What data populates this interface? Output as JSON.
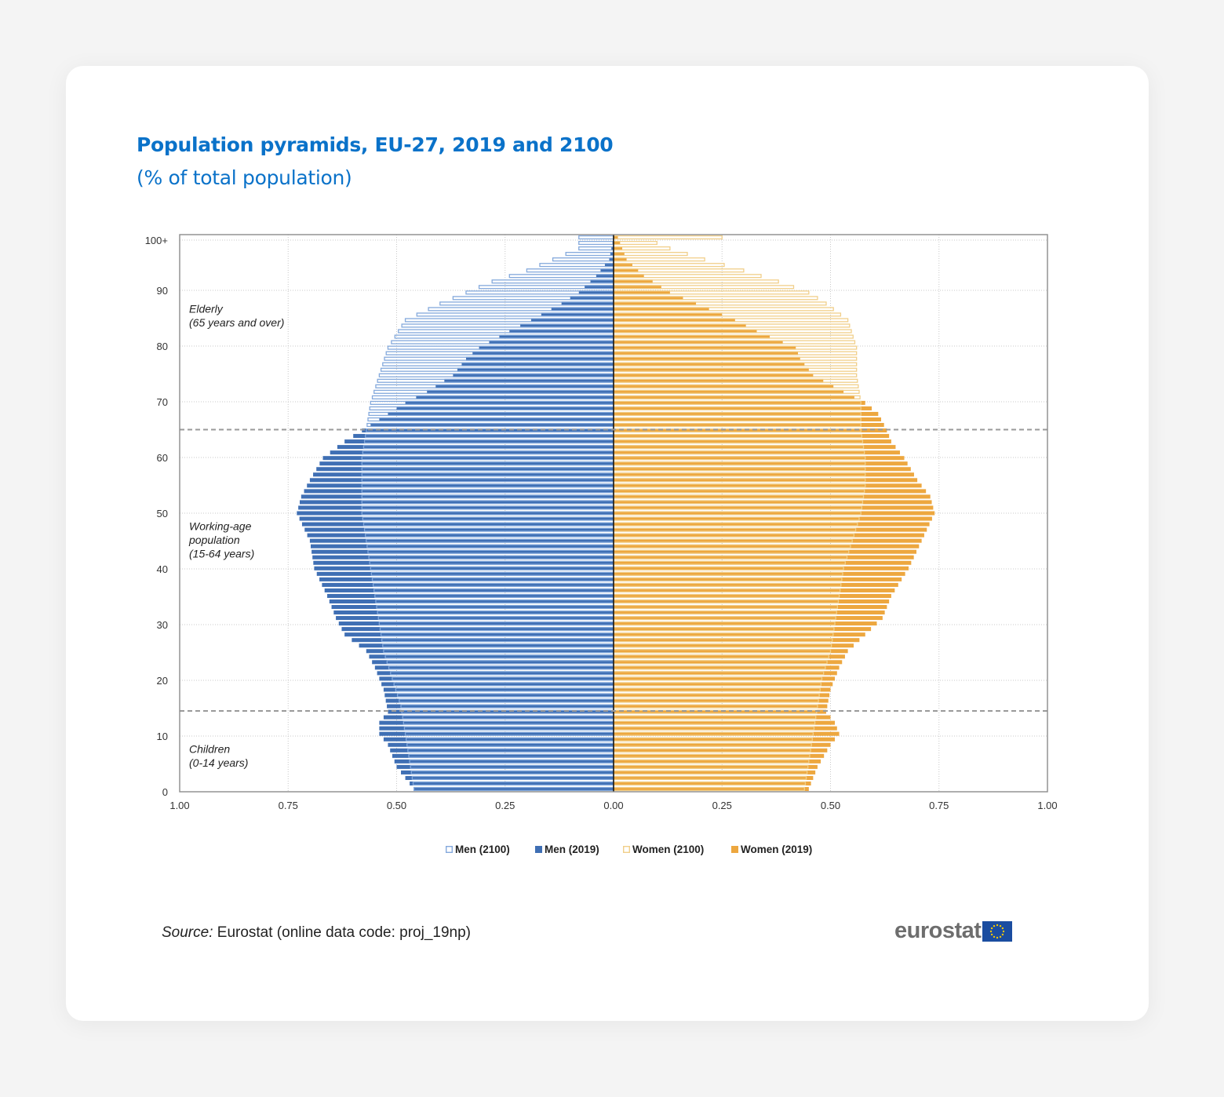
{
  "title": "Population pyramids, EU-27, 2019 and 2100",
  "subtitle": "(% of total population)",
  "source": {
    "label": "Source:",
    "text": "Eurostat (online data code: proj_19np)"
  },
  "logo": {
    "text": "eurostat",
    "flag_icon": "eu-flag-icon"
  },
  "colors": {
    "men_2019": "#3f6fb4",
    "men_2100": "#84a9dc",
    "women_2019": "#eda73f",
    "women_2100": "#f1cf8a",
    "title": "#0a72c9"
  },
  "annotations": [
    {
      "lines": [
        "Elderly",
        "(65 years and over)"
      ],
      "age": 86
    },
    {
      "lines": [
        "Working-age",
        "population",
        "(15-64 years)"
      ],
      "age": 47
    },
    {
      "lines": [
        "Children",
        "(0-14 years)"
      ],
      "age": 7
    }
  ],
  "chart_data": {
    "type": "bar",
    "orientation": "horizontal-pyramid",
    "y_ticks": [
      {
        "age": 100,
        "label": "100+"
      },
      {
        "age": 90,
        "label": "90"
      },
      {
        "age": 80,
        "label": "80"
      },
      {
        "age": 70,
        "label": "70"
      },
      {
        "age": 60,
        "label": "60"
      },
      {
        "age": 50,
        "label": "50"
      },
      {
        "age": 40,
        "label": "40"
      },
      {
        "age": 30,
        "label": "30"
      },
      {
        "age": 20,
        "label": "20"
      },
      {
        "age": 10,
        "label": "10"
      },
      {
        "age": 0,
        "label": "0"
      }
    ],
    "x_ticks": [
      {
        "value": -1.0,
        "label": "1.00"
      },
      {
        "value": -0.75,
        "label": "0.75"
      },
      {
        "value": -0.5,
        "label": "0.50"
      },
      {
        "value": -0.25,
        "label": "0.25"
      },
      {
        "value": 0,
        "label": "0.00"
      },
      {
        "value": 0.25,
        "label": "0.25"
      },
      {
        "value": 0.5,
        "label": "0.50"
      },
      {
        "value": 0.75,
        "label": "0.75"
      },
      {
        "value": 1.0,
        "label": "1.00"
      }
    ],
    "xlim": [
      -1.0,
      1.0
    ],
    "ylim": [
      0,
      100
    ],
    "reference_lines_age": [
      65,
      14.5
    ],
    "grid": true,
    "legend_position": "bottom-center",
    "series": [
      {
        "name": "Men (2100)",
        "side": "left",
        "style": "outline",
        "keys": [
          [
            0,
            0.46
          ],
          [
            5,
            0.47
          ],
          [
            10,
            0.48
          ],
          [
            15,
            0.49
          ],
          [
            20,
            0.51
          ],
          [
            25,
            0.53
          ],
          [
            30,
            0.54
          ],
          [
            35,
            0.55
          ],
          [
            40,
            0.56
          ],
          [
            45,
            0.57
          ],
          [
            50,
            0.58
          ],
          [
            55,
            0.58
          ],
          [
            60,
            0.58
          ],
          [
            65,
            0.57
          ],
          [
            70,
            0.56
          ],
          [
            75,
            0.54
          ],
          [
            80,
            0.52
          ],
          [
            85,
            0.48
          ],
          [
            88,
            0.4
          ],
          [
            90,
            0.34
          ],
          [
            92,
            0.28
          ],
          [
            94,
            0.2
          ],
          [
            96,
            0.14
          ],
          [
            98,
            0.08
          ],
          [
            100,
            0.08
          ]
        ]
      },
      {
        "name": "Men (2019)",
        "side": "left",
        "style": "solid",
        "keys": [
          [
            0,
            0.46
          ],
          [
            4,
            0.5
          ],
          [
            8,
            0.52
          ],
          [
            10,
            0.54
          ],
          [
            12,
            0.54
          ],
          [
            14,
            0.52
          ],
          [
            18,
            0.53
          ],
          [
            22,
            0.55
          ],
          [
            25,
            0.57
          ],
          [
            28,
            0.62
          ],
          [
            31,
            0.64
          ],
          [
            35,
            0.66
          ],
          [
            40,
            0.69
          ],
          [
            45,
            0.7
          ],
          [
            50,
            0.73
          ],
          [
            53,
            0.72
          ],
          [
            56,
            0.7
          ],
          [
            60,
            0.67
          ],
          [
            63,
            0.62
          ],
          [
            65,
            0.58
          ],
          [
            68,
            0.52
          ],
          [
            70,
            0.48
          ],
          [
            72,
            0.43
          ],
          [
            75,
            0.37
          ],
          [
            78,
            0.34
          ],
          [
            80,
            0.31
          ],
          [
            83,
            0.24
          ],
          [
            85,
            0.19
          ],
          [
            88,
            0.12
          ],
          [
            90,
            0.08
          ],
          [
            93,
            0.04
          ],
          [
            96,
            0.01
          ],
          [
            100,
            0.0
          ]
        ]
      },
      {
        "name": "Women (2100)",
        "side": "right",
        "style": "outline",
        "keys": [
          [
            0,
            0.44
          ],
          [
            5,
            0.45
          ],
          [
            10,
            0.46
          ],
          [
            15,
            0.47
          ],
          [
            20,
            0.48
          ],
          [
            25,
            0.5
          ],
          [
            30,
            0.51
          ],
          [
            35,
            0.52
          ],
          [
            40,
            0.53
          ],
          [
            45,
            0.55
          ],
          [
            50,
            0.57
          ],
          [
            55,
            0.58
          ],
          [
            60,
            0.58
          ],
          [
            65,
            0.57
          ],
          [
            70,
            0.57
          ],
          [
            75,
            0.56
          ],
          [
            80,
            0.56
          ],
          [
            85,
            0.54
          ],
          [
            88,
            0.49
          ],
          [
            90,
            0.45
          ],
          [
            92,
            0.38
          ],
          [
            94,
            0.3
          ],
          [
            96,
            0.21
          ],
          [
            98,
            0.13
          ],
          [
            99,
            0.1
          ],
          [
            100,
            0.25
          ]
        ]
      },
      {
        "name": "Women (2019)",
        "side": "right",
        "style": "solid",
        "keys": [
          [
            0,
            0.45
          ],
          [
            4,
            0.47
          ],
          [
            8,
            0.5
          ],
          [
            10,
            0.52
          ],
          [
            12,
            0.51
          ],
          [
            14,
            0.49
          ],
          [
            18,
            0.5
          ],
          [
            22,
            0.52
          ],
          [
            25,
            0.54
          ],
          [
            28,
            0.58
          ],
          [
            31,
            0.62
          ],
          [
            35,
            0.64
          ],
          [
            40,
            0.68
          ],
          [
            45,
            0.71
          ],
          [
            50,
            0.74
          ],
          [
            53,
            0.73
          ],
          [
            56,
            0.7
          ],
          [
            60,
            0.67
          ],
          [
            63,
            0.64
          ],
          [
            65,
            0.63
          ],
          [
            68,
            0.61
          ],
          [
            70,
            0.58
          ],
          [
            72,
            0.53
          ],
          [
            75,
            0.46
          ],
          [
            78,
            0.43
          ],
          [
            80,
            0.42
          ],
          [
            83,
            0.33
          ],
          [
            85,
            0.28
          ],
          [
            88,
            0.19
          ],
          [
            90,
            0.13
          ],
          [
            93,
            0.07
          ],
          [
            96,
            0.03
          ],
          [
            100,
            0.01
          ]
        ]
      }
    ]
  }
}
